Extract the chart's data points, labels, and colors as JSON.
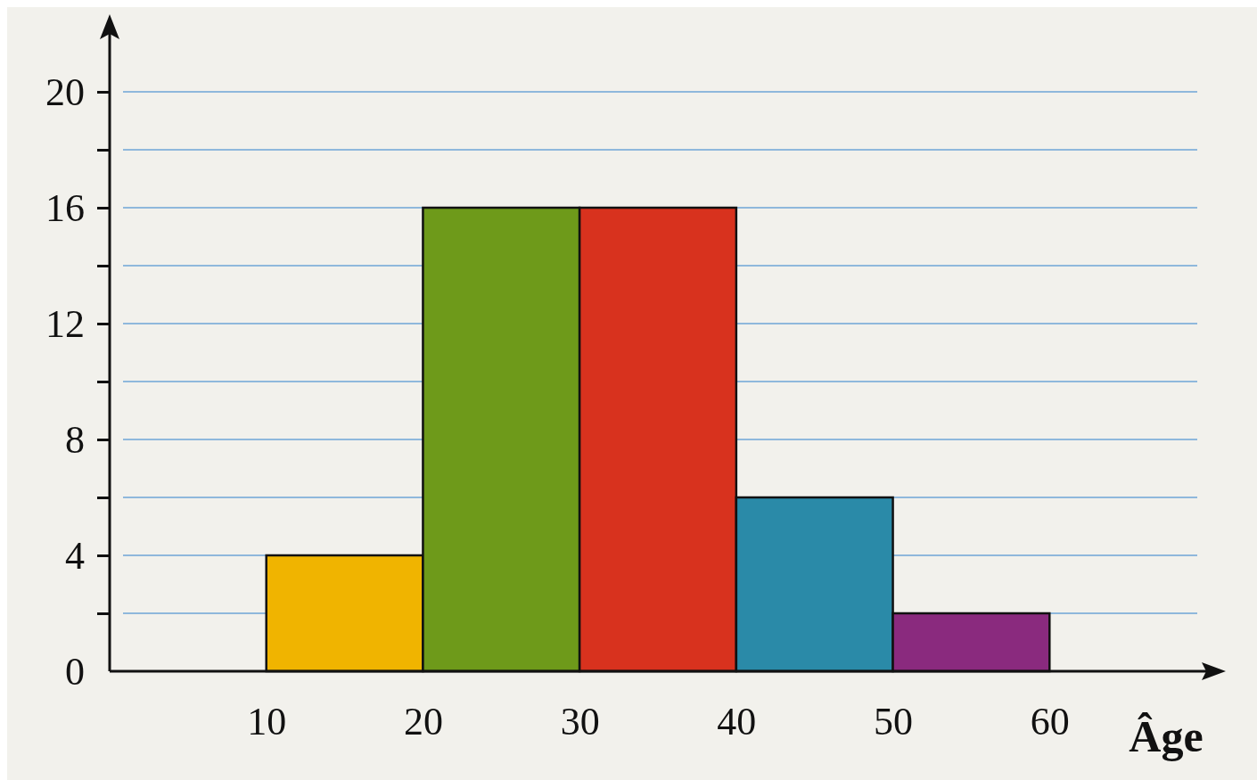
{
  "chart_data": {
    "type": "histogram",
    "xlabel": "Âge",
    "bins": [
      10,
      20,
      30,
      40,
      50,
      60
    ],
    "values": [
      4,
      16,
      16,
      6,
      2
    ],
    "colors": [
      "#f0b400",
      "#6e9a1a",
      "#d8321e",
      "#2a8aa8",
      "#8a2a7e"
    ],
    "xlim": [
      0,
      70
    ],
    "ylim": [
      0,
      22
    ],
    "xticks": [
      10,
      20,
      30,
      40,
      50,
      60
    ],
    "yticks": [
      0,
      {
        "value": 2,
        "label": null
      },
      4,
      {
        "value": 6,
        "label": null
      },
      8,
      {
        "value": 10,
        "label": null
      },
      12,
      {
        "value": 14,
        "label": null
      },
      16,
      {
        "value": 18,
        "label": null
      },
      20
    ],
    "grid": "y"
  }
}
